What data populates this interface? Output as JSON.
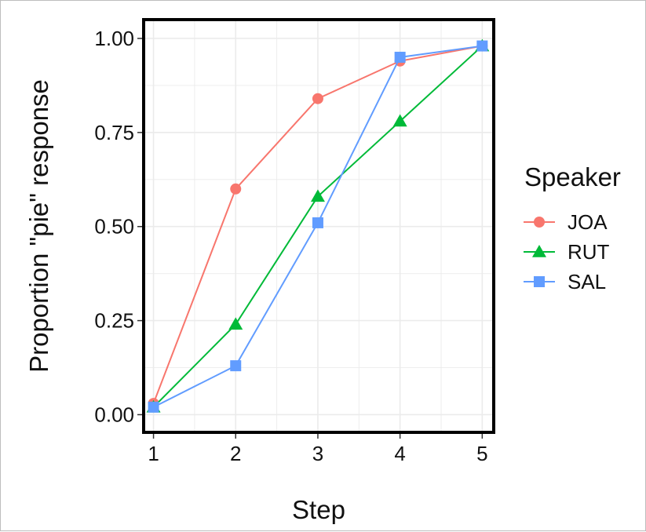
{
  "chart_data": {
    "type": "line",
    "title": "",
    "xlabel": "Step",
    "ylabel": "Proportion \"pie\" response",
    "x": [
      1,
      2,
      3,
      4,
      5
    ],
    "xlim": [
      0.88,
      5.14
    ],
    "ylim": [
      -0.047,
      1.05
    ],
    "xticks": [
      1,
      2,
      3,
      4,
      5
    ],
    "xtick_labels": [
      "1",
      "2",
      "3",
      "4",
      "5"
    ],
    "yticks": [
      0,
      0.25,
      0.5,
      0.75,
      1.0
    ],
    "ytick_labels": [
      "0.00",
      "0.25",
      "0.50",
      "0.75",
      "1.00"
    ],
    "grid": true,
    "legend": {
      "title": "Speaker",
      "position": "right"
    },
    "series": [
      {
        "name": "JOA",
        "color": "#F8766D",
        "marker": "circle",
        "values": [
          0.03,
          0.6,
          0.84,
          0.94,
          0.98
        ]
      },
      {
        "name": "RUT",
        "color": "#00BA38",
        "marker": "triangle",
        "values": [
          0.02,
          0.24,
          0.58,
          0.78,
          0.98
        ]
      },
      {
        "name": "SAL",
        "color": "#619CFF",
        "marker": "square",
        "values": [
          0.02,
          0.13,
          0.51,
          0.95,
          0.98
        ]
      }
    ]
  }
}
